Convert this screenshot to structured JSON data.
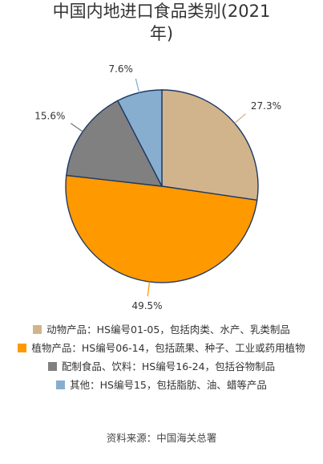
{
  "title_lines": [
    "中国内地进口食品类别(2021",
    "年)"
  ],
  "source": "资料来源：中国海关总署",
  "chart_data": {
    "type": "pie",
    "title": "中国内地进口食品类别(2021年)",
    "slices": [
      {
        "name": "动物产品：HS编号01-05，包括肉类、水产、乳类制品",
        "value": 27.3,
        "label": "27.3%",
        "color": "#D2B48C"
      },
      {
        "name": "植物产品：HS编号06-14，包括蔬果、种子、工业或药用植物",
        "value": 49.5,
        "label": "49.5%",
        "color": "#FF9900"
      },
      {
        "name": "配制食品、饮料：HS编号16-24，包括谷物制品",
        "value": 15.6,
        "label": "15.6%",
        "color": "#808080"
      },
      {
        "name": "其他：HS编号15，包括脂肪、油、蜡等产品",
        "value": 7.6,
        "label": "7.6%",
        "color": "#87AECF"
      }
    ],
    "start": "top",
    "direction": "clockwise",
    "legend_position": "bottom"
  }
}
